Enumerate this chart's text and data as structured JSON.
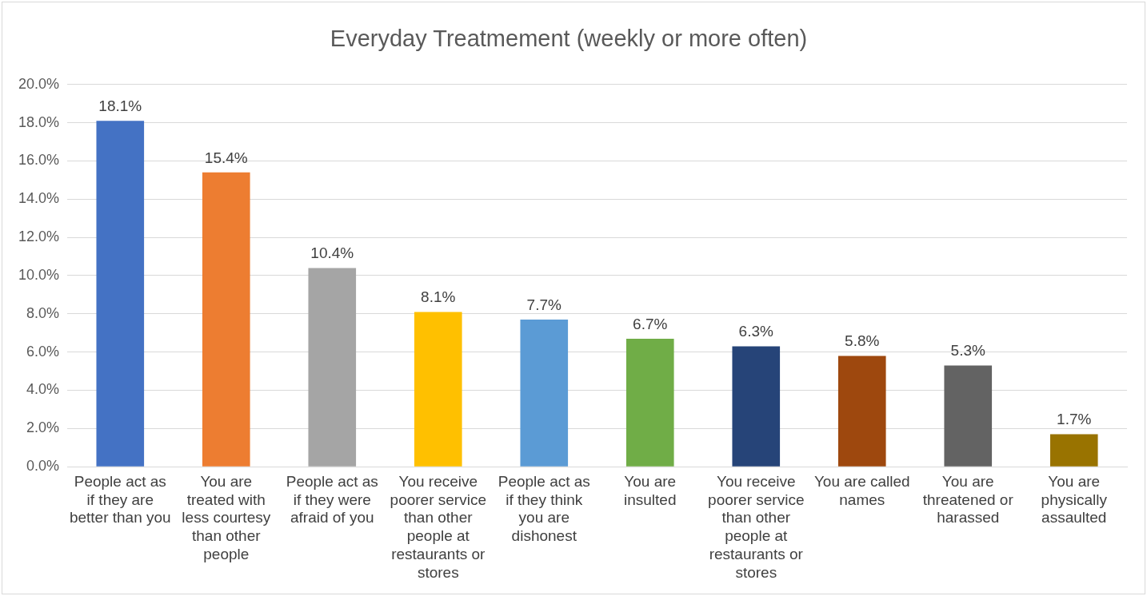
{
  "chart_data": {
    "type": "bar",
    "title": "Everyday Treatmement (weekly or more often)",
    "categories": [
      "People act as if they are better than you",
      "You are treated with less courtesy than other people",
      "People act as if they were afraid of you",
      "You receive poorer service than other people at restaurants or stores",
      "People act as if they think you are dishonest",
      "You are insulted",
      "You receive poorer service than other people at restaurants or stores",
      "You are called names",
      "You are threatened or harassed",
      "You are physically assaulted"
    ],
    "values": [
      18.1,
      15.4,
      10.4,
      8.1,
      7.7,
      6.7,
      6.3,
      5.8,
      5.3,
      1.7
    ],
    "colors": [
      "#4472c4",
      "#ed7d31",
      "#a5a5a5",
      "#ffc000",
      "#5b9bd5",
      "#70ad47",
      "#264478",
      "#9e480e",
      "#636363",
      "#997300"
    ],
    "value_labels": [
      "18.1%",
      "15.4%",
      "10.4%",
      "8.1%",
      "7.7%",
      "6.7%",
      "6.3%",
      "5.8%",
      "5.3%",
      "1.7%"
    ],
    "ylim": [
      0,
      20
    ],
    "yticks": [
      {
        "value": 0,
        "label": "0.0%"
      },
      {
        "value": 2,
        "label": "2.0%"
      },
      {
        "value": 4,
        "label": "4.0%"
      },
      {
        "value": 6,
        "label": "6.0%"
      },
      {
        "value": 8,
        "label": "8.0%"
      },
      {
        "value": 10,
        "label": "10.0%"
      },
      {
        "value": 12,
        "label": "12.0%"
      },
      {
        "value": 14,
        "label": "14.0%"
      },
      {
        "value": 16,
        "label": "16.0%"
      },
      {
        "value": 18,
        "label": "18.0%"
      },
      {
        "value": 20,
        "label": "20.0%"
      }
    ],
    "grid": "y",
    "legend": false
  }
}
